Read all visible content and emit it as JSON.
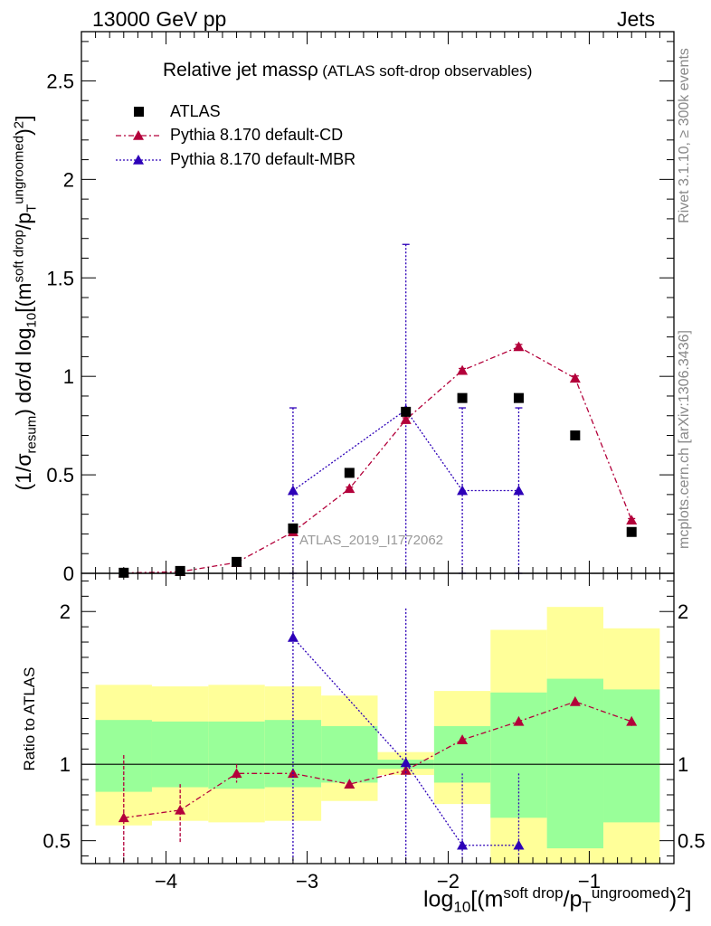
{
  "header": {
    "energy": "13000 GeV pp",
    "process": "Jets",
    "rivet_label": "Rivet 3.1.10, ≥ 300k events",
    "mcplots_label": "mcplots.cern.ch [arXiv:1306.3436]"
  },
  "chart_data": [
    {
      "type": "scatter",
      "title": "Relative jet massρ",
      "subtitle": "(ATLAS soft-drop observables)",
      "watermark": "ATLAS_2019_I1772062",
      "ylabel": "(1/σresum) dσ/d log10[(msoft drop/pTungroomed)2]",
      "xlabel": "log10[(msoft drop/pTungroomed)2]",
      "xlim": [
        -4.6,
        -0.4
      ],
      "ylim": [
        0,
        2.75
      ],
      "yticks": [
        0,
        0.5,
        1,
        1.5,
        2,
        2.5
      ],
      "ytick_labels": [
        "0",
        "0.5",
        "1",
        "1.5",
        "2",
        "2.5"
      ],
      "legend": [
        {
          "name": "ATLAS",
          "color": "#000000",
          "marker": "square"
        },
        {
          "name": "Pythia 8.170 default-CD",
          "color": "#b3003a",
          "marker": "triangle"
        },
        {
          "name": "Pythia 8.170 default-MBR",
          "color": "#2d00b8",
          "marker": "triangle"
        }
      ],
      "series": [
        {
          "name": "ATLAS",
          "x": [
            -4.3,
            -3.9,
            -3.5,
            -3.1,
            -2.7,
            -2.3,
            -1.9,
            -1.5,
            -1.1,
            -0.7
          ],
          "y": [
            0.003,
            0.012,
            0.058,
            0.228,
            0.51,
            0.82,
            0.89,
            0.89,
            0.7,
            0.21
          ]
        },
        {
          "name": "Pythia 8.170 default-CD",
          "x": [
            -4.3,
            -3.9,
            -3.5,
            -3.1,
            -2.7,
            -2.3,
            -1.9,
            -1.5,
            -1.1,
            -0.7
          ],
          "y": [
            0.002,
            0.008,
            0.055,
            0.21,
            0.43,
            0.78,
            1.03,
            1.15,
            0.99,
            0.27
          ],
          "err": [
            0.001,
            0.002,
            0.003,
            0.005,
            0.008,
            0.01,
            0.01,
            0.012,
            0.012,
            0.008
          ]
        },
        {
          "name": "Pythia 8.170 default-MBR",
          "x": [
            -3.1,
            -2.3,
            -1.9,
            -1.5
          ],
          "y": [
            0.42,
            0.83,
            0.42,
            0.42
          ],
          "err": [
            0.42,
            0.84,
            0.42,
            0.42
          ]
        }
      ]
    },
    {
      "type": "scatter",
      "ylabel": "Ratio to ATLAS",
      "xlabel": "log10[(msoft drop/pTungroomed)2]",
      "xlim": [
        -4.6,
        -0.4
      ],
      "ylim": [
        0.35,
        2.25
      ],
      "yticks": [
        0.5,
        1,
        2
      ],
      "ytick_labels": [
        "0.5",
        "1",
        "2"
      ],
      "xticks": [
        -4,
        -3,
        -2,
        -1
      ],
      "xtick_labels": [
        "−4",
        "−3",
        "−2",
        "−1"
      ],
      "bands": {
        "edges": [
          -4.5,
          -4.1,
          -3.7,
          -3.3,
          -2.9,
          -2.5,
          -2.1,
          -1.7,
          -1.3,
          -0.9,
          -0.5
        ],
        "yellow_lo": [
          0.6,
          0.63,
          0.62,
          0.63,
          0.76,
          0.93,
          0.74,
          0.35,
          0.35,
          0.35
        ],
        "yellow_hi": [
          1.52,
          1.51,
          1.52,
          1.51,
          1.45,
          1.08,
          1.48,
          1.88,
          2.03,
          1.89
        ],
        "green_lo": [
          0.82,
          0.85,
          0.84,
          0.85,
          0.88,
          0.97,
          0.88,
          0.65,
          0.45,
          0.62
        ],
        "green_hi": [
          1.29,
          1.28,
          1.28,
          1.29,
          1.25,
          1.03,
          1.25,
          1.47,
          1.56,
          1.49
        ]
      },
      "series": [
        {
          "name": "Pythia 8.170 default-CD",
          "x": [
            -4.3,
            -3.9,
            -3.5,
            -3.1,
            -2.7,
            -2.3,
            -1.9,
            -1.5,
            -1.1,
            -0.7
          ],
          "y": [
            0.65,
            0.7,
            0.94,
            0.94,
            0.87,
            0.96,
            1.16,
            1.28,
            1.41,
            1.28
          ],
          "err_lo": [
            0.41,
            0.21,
            0.06,
            0.02,
            0.01,
            0.01,
            0.01,
            0.01,
            0.02,
            0.03
          ],
          "err_hi": [
            0.41,
            0.17,
            0.06,
            0.02,
            0.01,
            0.01,
            0.01,
            0.01,
            0.02,
            0.03
          ]
        },
        {
          "name": "Pythia 8.170 default-MBR",
          "x": [
            -3.1,
            -2.3,
            -1.9,
            -1.5
          ],
          "y": [
            1.83,
            1.01,
            0.47,
            0.47
          ],
          "err_lo": [
            1.83,
            1.01,
            0.47,
            0.47
          ],
          "err_hi": [
            1.83,
            1.01,
            0.47,
            0.47
          ]
        }
      ]
    }
  ]
}
